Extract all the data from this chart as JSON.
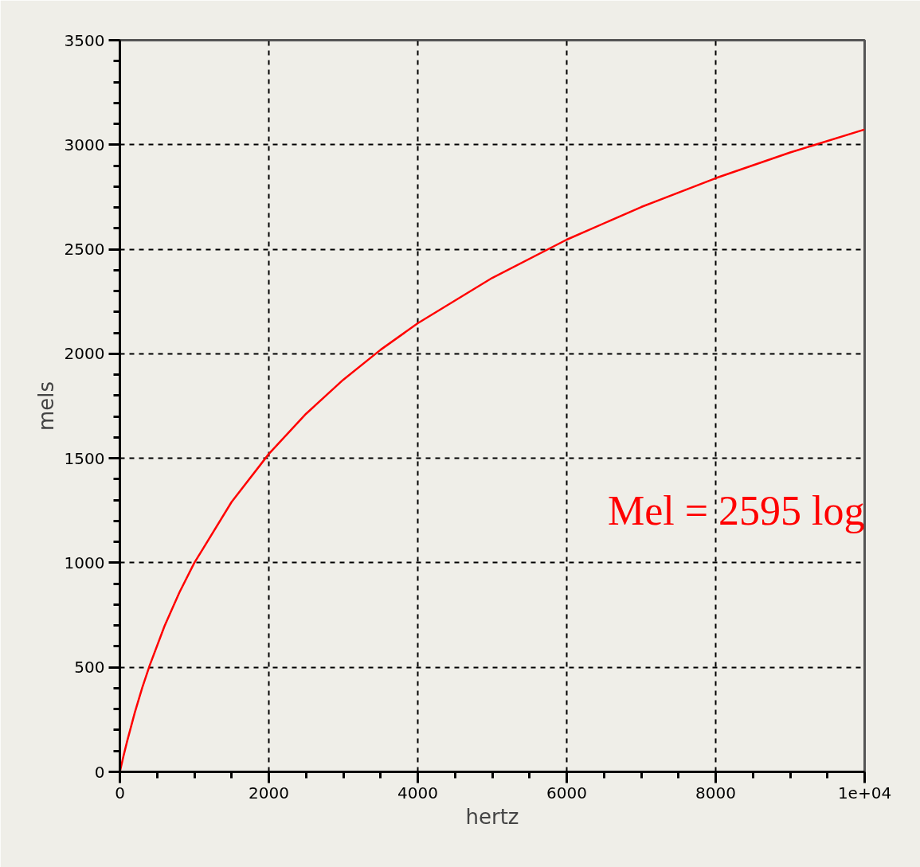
{
  "chart_data": {
    "type": "line",
    "xlabel": "hertz",
    "ylabel": "mels",
    "x": [
      0,
      50,
      100,
      200,
      300,
      400,
      600,
      800,
      1000,
      1500,
      2000,
      2500,
      3000,
      3500,
      4000,
      5000,
      6000,
      7000,
      8000,
      9000,
      10000
    ],
    "series": [
      {
        "color": "#ff0000",
        "values": [
          0,
          78,
          150,
          283,
          402,
          509,
          698,
          859,
          1000,
          1291,
          1521,
          1713,
          1876,
          2019,
          2146,
          2363,
          2546,
          2702,
          2840,
          2963,
          3073
        ]
      }
    ],
    "xlim": [
      0,
      10000
    ],
    "ylim": [
      0,
      3500
    ],
    "xticks": [
      0,
      {
        "value": 500,
        "label": null
      },
      {
        "value": 1000,
        "label": null
      },
      {
        "value": 1500,
        "label": null
      },
      2000,
      {
        "value": 2500,
        "label": null
      },
      {
        "value": 3000,
        "label": null
      },
      {
        "value": 3500,
        "label": null
      },
      4000,
      {
        "value": 4500,
        "label": null
      },
      {
        "value": 5000,
        "label": null
      },
      {
        "value": 5500,
        "label": null
      },
      6000,
      {
        "value": 6500,
        "label": null
      },
      {
        "value": 7000,
        "label": null
      },
      {
        "value": 7500,
        "label": null
      },
      8000,
      {
        "value": 8500,
        "label": null
      },
      {
        "value": 9000,
        "label": null
      },
      {
        "value": 9500,
        "label": null
      },
      {
        "value": 10000,
        "label": "1e+04"
      }
    ],
    "yticks": [
      0,
      {
        "value": 100,
        "label": null
      },
      {
        "value": 200,
        "label": null
      },
      {
        "value": 300,
        "label": null
      },
      {
        "value": 400,
        "label": null
      },
      500,
      {
        "value": 600,
        "label": null
      },
      {
        "value": 700,
        "label": null
      },
      {
        "value": 800,
        "label": null
      },
      {
        "value": 900,
        "label": null
      },
      1000,
      {
        "value": 1100,
        "label": null
      },
      {
        "value": 1200,
        "label": null
      },
      {
        "value": 1300,
        "label": null
      },
      {
        "value": 1400,
        "label": null
      },
      1500,
      {
        "value": 1600,
        "label": null
      },
      {
        "value": 1700,
        "label": null
      },
      {
        "value": 1800,
        "label": null
      },
      {
        "value": 1900,
        "label": null
      },
      2000,
      {
        "value": 2100,
        "label": null
      },
      {
        "value": 2200,
        "label": null
      },
      {
        "value": 2300,
        "label": null
      },
      {
        "value": 2400,
        "label": null
      },
      2500,
      {
        "value": 2600,
        "label": null
      },
      {
        "value": 2700,
        "label": null
      },
      {
        "value": 2800,
        "label": null
      },
      {
        "value": 2900,
        "label": null
      },
      3000,
      {
        "value": 3100,
        "label": null
      },
      {
        "value": 3200,
        "label": null
      },
      {
        "value": 3300,
        "label": null
      },
      {
        "value": 3400,
        "label": null
      },
      3500
    ],
    "grid": true,
    "marker": "none",
    "line_style": "solid",
    "annotations": [
      "Mel = 2595 log"
    ]
  }
}
